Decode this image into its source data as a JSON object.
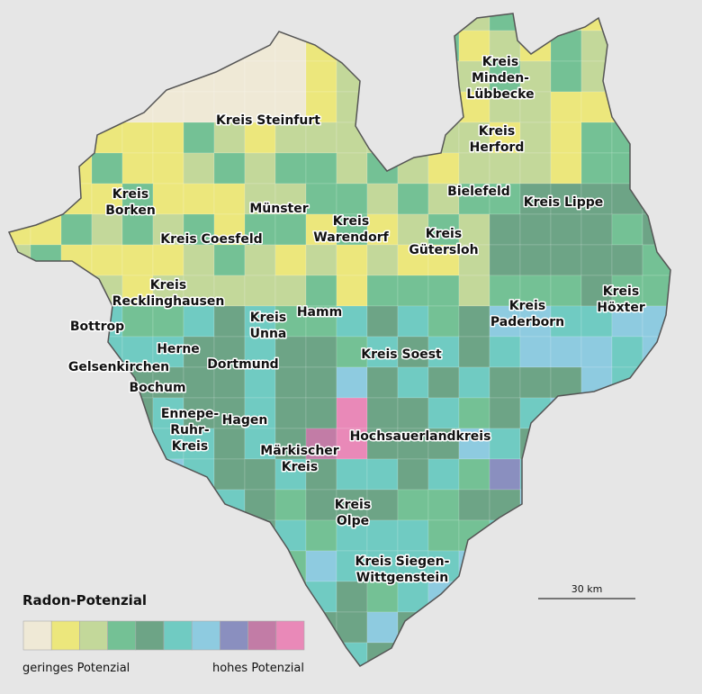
{
  "map": {
    "labels": [
      {
        "lines": [
          "Kreis Steinfurt"
        ]
      },
      {
        "lines": [
          "Kreis",
          "Minden-",
          "Lübbecke"
        ]
      },
      {
        "lines": [
          "Kreis",
          "Herford"
        ]
      },
      {
        "lines": [
          "Bielefeld"
        ]
      },
      {
        "lines": [
          "Kreis Lippe"
        ]
      },
      {
        "lines": [
          "Kreis",
          "Borken"
        ]
      },
      {
        "lines": [
          "Münster"
        ]
      },
      {
        "lines": [
          "Kreis",
          "Warendorf"
        ]
      },
      {
        "lines": [
          "Kreis",
          "Gütersloh"
        ]
      },
      {
        "lines": [
          "Kreis Coesfeld"
        ]
      },
      {
        "lines": [
          "Kreis",
          "Recklinghausen"
        ]
      },
      {
        "lines": [
          "Kreis",
          "Paderborn"
        ]
      },
      {
        "lines": [
          "Kreis",
          "Höxter"
        ]
      },
      {
        "lines": [
          "Bottrop"
        ]
      },
      {
        "lines": [
          "Hamm"
        ]
      },
      {
        "lines": [
          "Kreis",
          "Unna"
        ]
      },
      {
        "lines": [
          "Herne"
        ]
      },
      {
        "lines": [
          "Kreis Soest"
        ]
      },
      {
        "lines": [
          "Gelsenkirchen"
        ]
      },
      {
        "lines": [
          "Dortmund"
        ]
      },
      {
        "lines": [
          "Bochum"
        ]
      },
      {
        "lines": [
          "Ennepe-",
          "Ruhr-",
          "Kreis"
        ]
      },
      {
        "lines": [
          "Hagen"
        ]
      },
      {
        "lines": [
          "Märkischer",
          "Kreis"
        ]
      },
      {
        "lines": [
          "Hochsauerlandkreis"
        ]
      },
      {
        "lines": [
          "Kreis",
          "Olpe"
        ]
      },
      {
        "lines": [
          "Kreis Siegen-",
          "Wittgenstein"
        ]
      }
    ],
    "legend": {
      "title": "Radon-Potenzial",
      "low_label": "geringes Potenzial",
      "high_label": "hohes Potenzial",
      "colors": [
        "#efe9d6",
        "#ece77c",
        "#c3d89a",
        "#74c195",
        "#6da486",
        "#70cbc2",
        "#8ecbe0",
        "#8a8fbf",
        "#c27ca6",
        "#e989b8"
      ]
    },
    "scale_bar": {
      "label": "30 km"
    }
  }
}
